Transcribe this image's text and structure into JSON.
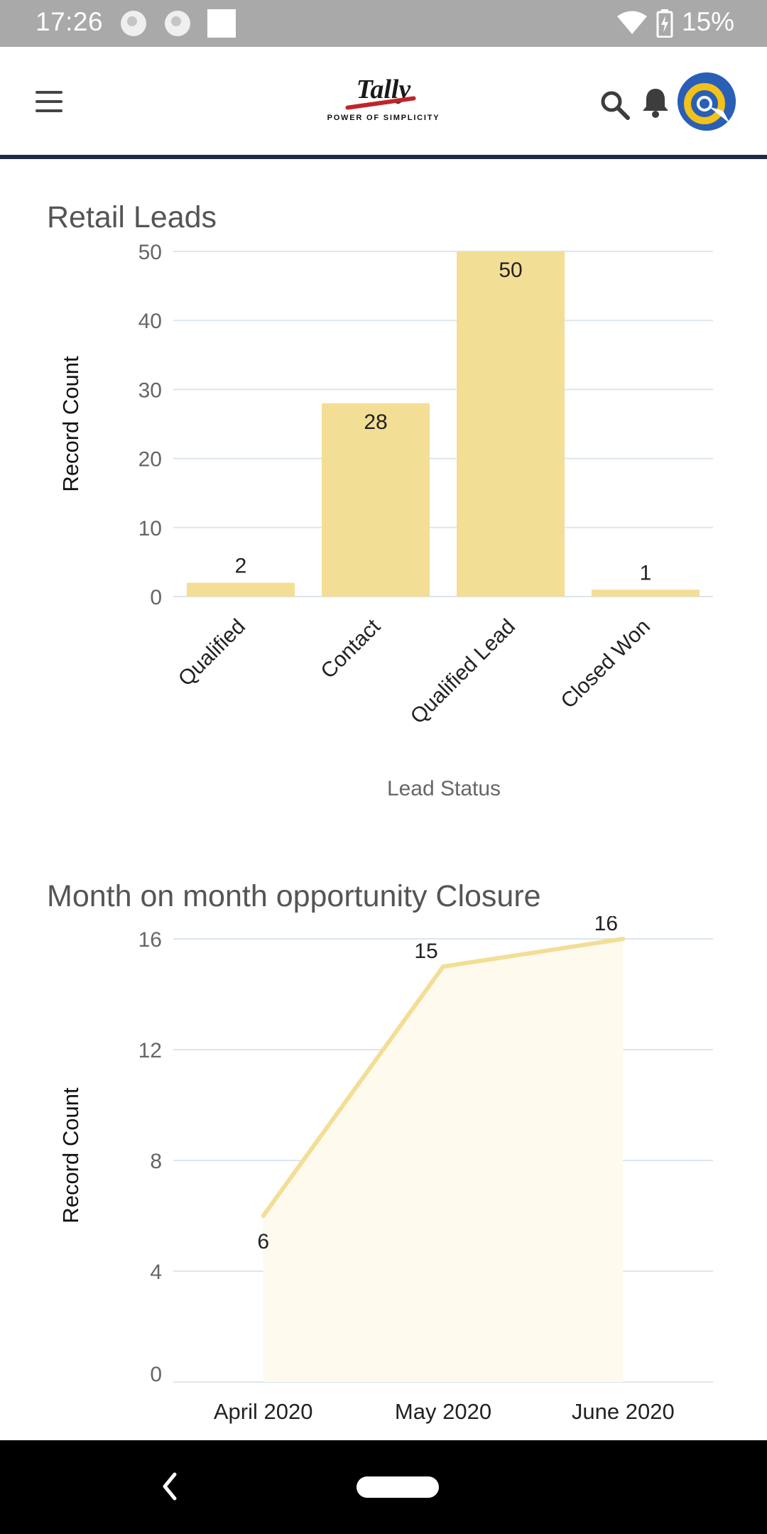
{
  "status_bar": {
    "time": "17:26",
    "battery_percent": "15%",
    "icons": [
      "globe-icon",
      "globe-icon",
      "notification-square-icon",
      "wifi-icon",
      "battery-charging-icon"
    ]
  },
  "app_bar": {
    "menu_icon": "hamburger-icon",
    "logo_text": "Tally",
    "logo_tagline": "POWER OF SIMPLICITY",
    "search_icon": "search-icon",
    "notification_icon": "bell-icon",
    "avatar_icon": "avatar"
  },
  "colors": {
    "bar_fill": "#f3de96",
    "line_stroke": "#f3de96",
    "area_fill": "#fffaee",
    "grid": "#dde6ee",
    "appbar_divider": "#1e2a44"
  },
  "charts": {
    "retail_leads": {
      "title": "Retail Leads"
    },
    "opportunity": {
      "title": "Month on month opportunity Closure"
    }
  },
  "chart_data": [
    {
      "type": "bar",
      "title": "Retail Leads",
      "categories": [
        "Qualified",
        "Contact",
        "Qualified Lead",
        "Closed Won"
      ],
      "values": [
        2,
        28,
        50,
        1
      ],
      "xlabel": "Lead Status",
      "ylabel": "Record Count",
      "ylim": [
        0,
        50
      ],
      "yticks": [
        0,
        10,
        20,
        30,
        40,
        50
      ],
      "grid": true,
      "legend": "none"
    },
    {
      "type": "area",
      "title": "Month on month opportunity Closure",
      "categories": [
        "April 2020",
        "May 2020",
        "June 2020"
      ],
      "values": [
        6,
        15,
        16
      ],
      "xlabel": "",
      "ylabel": "Record Count",
      "ylim": [
        0,
        16
      ],
      "yticks": [
        0,
        4,
        8,
        12,
        16
      ],
      "grid": true,
      "legend": "none"
    }
  ],
  "nav_bar": {
    "back_icon": "back-chevron-icon",
    "home_icon": "home-pill-icon"
  }
}
